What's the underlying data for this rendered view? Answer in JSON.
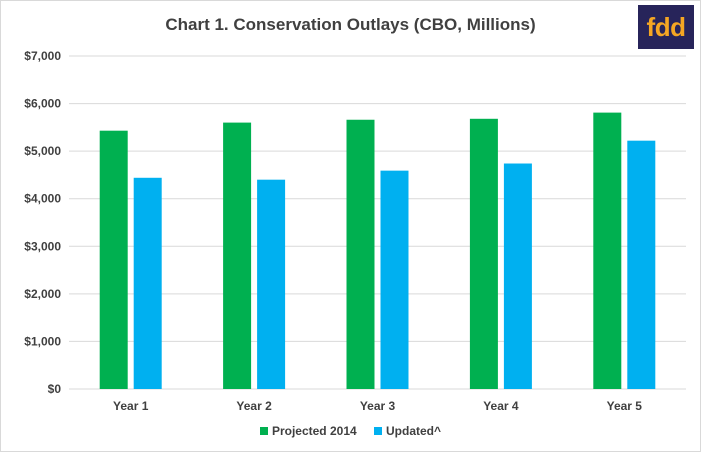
{
  "logo_text": "fdd",
  "colors": {
    "projected": "#00b050",
    "updated": "#00b0f0",
    "grid": "#d9d9d9",
    "logo_bg": "#27245a",
    "logo_fg": "#f5a623"
  },
  "chart_data": {
    "type": "bar",
    "title": "Chart 1. Conservation Outlays (CBO, Millions)",
    "categories": [
      "Year 1",
      "Year 2",
      "Year 3",
      "Year 4",
      "Year 5"
    ],
    "series": [
      {
        "name": "Projected 2014",
        "values": [
          5430,
          5600,
          5660,
          5680,
          5810
        ]
      },
      {
        "name": "Updated^",
        "values": [
          4440,
          4400,
          4590,
          4740,
          5220
        ]
      }
    ],
    "ylim": [
      0,
      7000
    ],
    "yticks": [
      "$0",
      "$1,000",
      "$2,000",
      "$3,000",
      "$4,000",
      "$5,000",
      "$6,000",
      "$7,000"
    ],
    "ytick_values": [
      0,
      1000,
      2000,
      3000,
      4000,
      5000,
      6000,
      7000
    ],
    "grid": true,
    "legend_position": "bottom"
  }
}
